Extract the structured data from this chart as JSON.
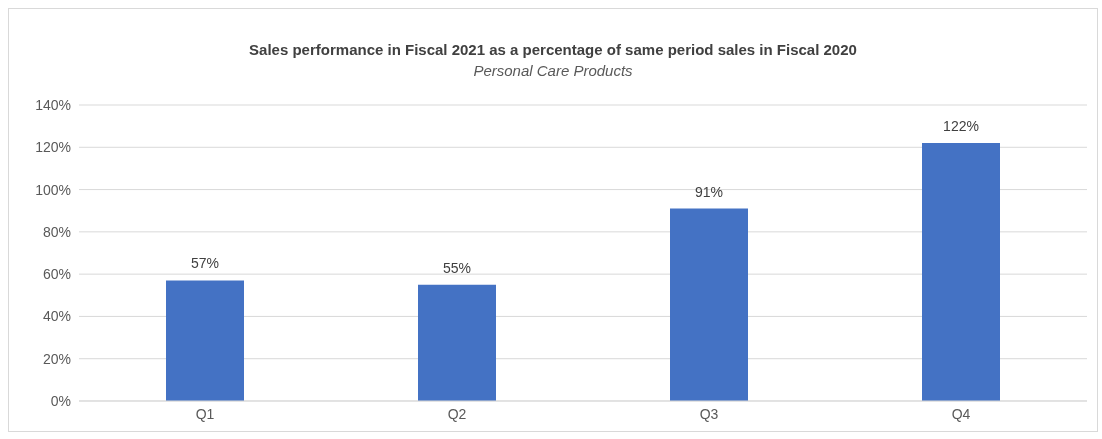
{
  "chart_data": {
    "type": "bar",
    "title": "Sales performance in Fiscal 2021 as a percentage of same period sales in Fiscal 2020",
    "subtitle": "Personal Care Products",
    "categories": [
      "Q1",
      "Q2",
      "Q3",
      "Q4"
    ],
    "values": [
      57,
      55,
      91,
      122
    ],
    "value_labels": [
      "57%",
      "55%",
      "91%",
      "122%"
    ],
    "color": "#4472c4",
    "ylim": [
      0,
      140
    ],
    "yticks": [
      {
        "value": 0,
        "label": "0%"
      },
      {
        "value": 20,
        "label": "20%"
      },
      {
        "value": 40,
        "label": "40%"
      },
      {
        "value": 60,
        "label": "60%"
      },
      {
        "value": 80,
        "label": "80%"
      },
      {
        "value": 100,
        "label": "100%"
      },
      {
        "value": 120,
        "label": "120%"
      },
      {
        "value": 140,
        "label": "140%"
      }
    ],
    "grid": "y",
    "legend": false
  }
}
